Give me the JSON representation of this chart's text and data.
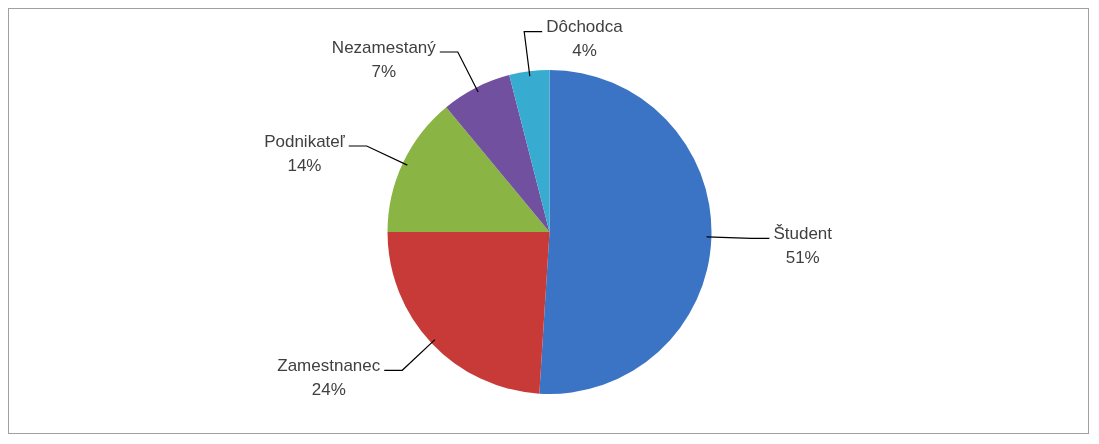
{
  "chart_data": {
    "type": "pie",
    "categories": [
      "Študent",
      "Zamestnanec",
      "Podnikateľ",
      "Nezamestaný",
      "Dôchodca"
    ],
    "values": [
      51,
      24,
      14,
      7,
      4
    ],
    "colors": [
      "#3b74c4",
      "#c73a38",
      "#8ab443",
      "#7150a0",
      "#38acd0"
    ],
    "value_labels": [
      "51%",
      "24%",
      "14%",
      "7%",
      "4%"
    ],
    "legend": false
  }
}
